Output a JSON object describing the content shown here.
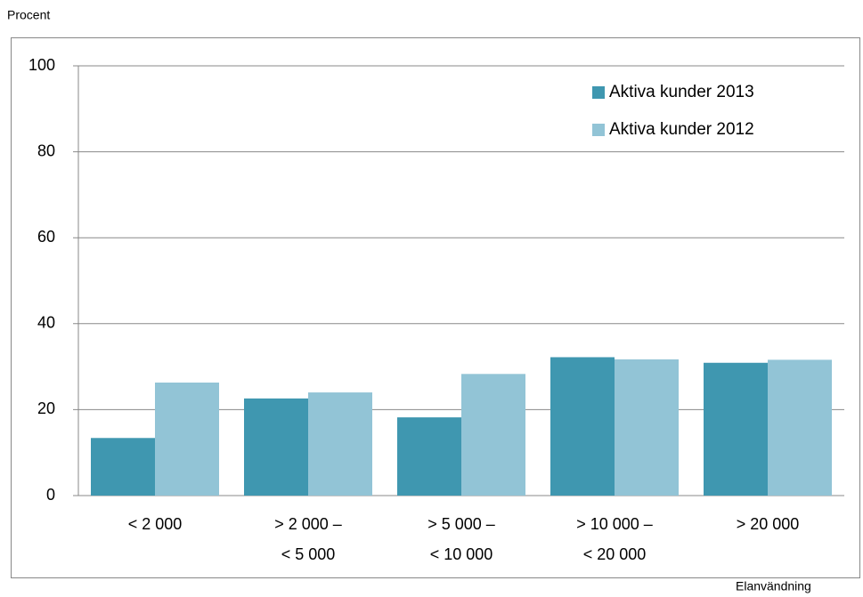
{
  "chart_data": {
    "type": "bar",
    "y_label": "Procent",
    "x_label": "Elanvändning",
    "categories": [
      "< 2 000",
      "> 2 000 –\n< 5 000",
      "> 5 000 –\n< 10 000",
      "> 10 000 –\n< 20 000",
      "> 20 000"
    ],
    "series": [
      {
        "name": "Aktiva kunder 2013",
        "color": "#3f97b0",
        "values": [
          13.4,
          22.6,
          18.2,
          32.2,
          30.9
        ]
      },
      {
        "name": "Aktiva kunder 2012",
        "color": "#92c4d6",
        "values": [
          26.3,
          24.0,
          28.3,
          31.7,
          31.6
        ]
      }
    ],
    "ylim": [
      0,
      100
    ],
    "yticks": [
      0,
      20,
      40,
      60,
      80,
      100
    ],
    "grid": true,
    "legend": "top-right"
  }
}
